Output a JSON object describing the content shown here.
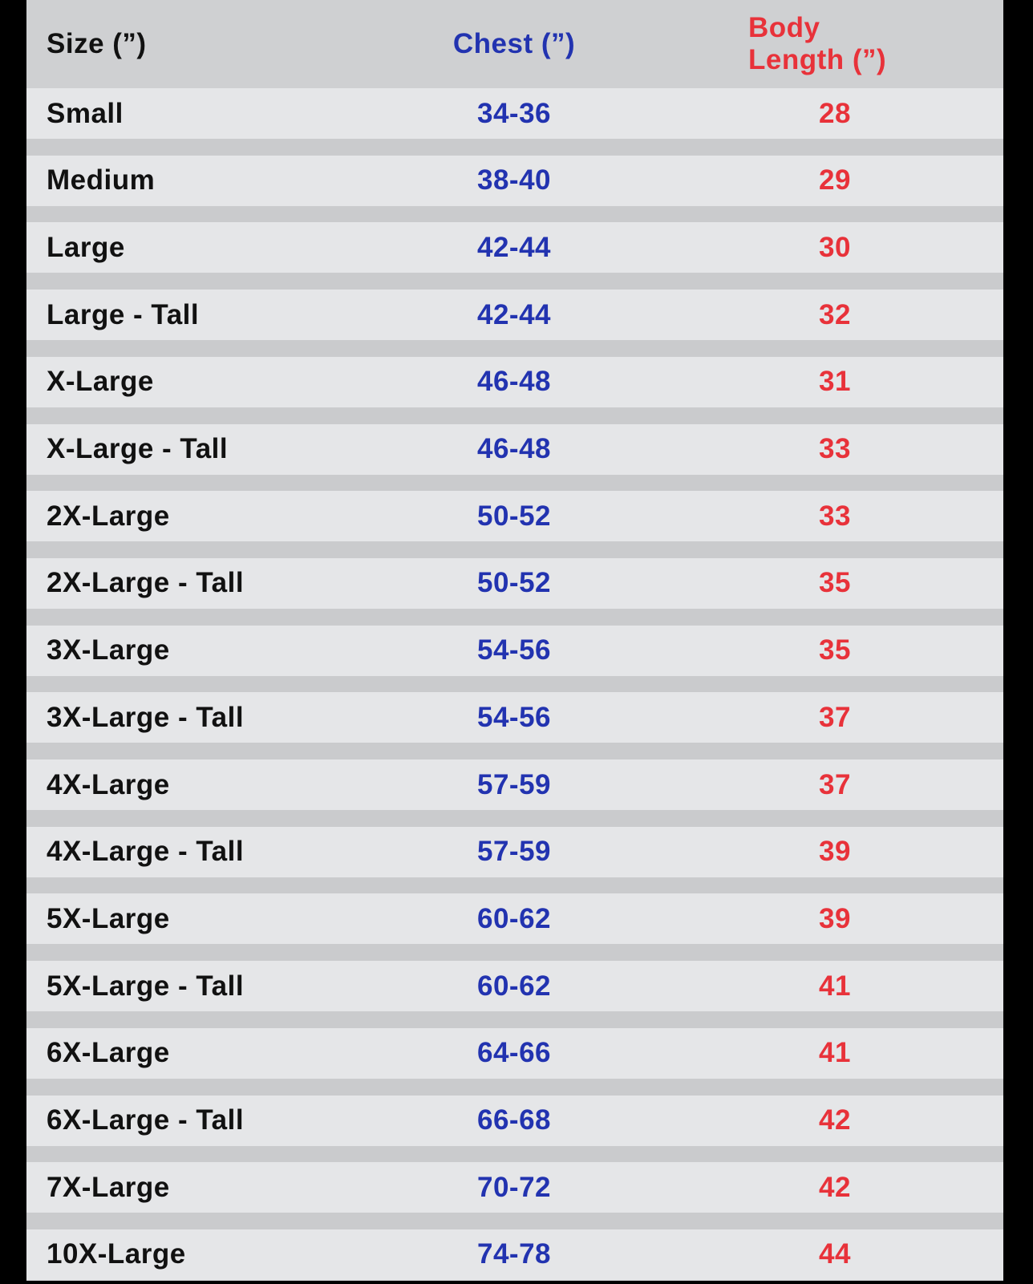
{
  "colors": {
    "size": "#111111",
    "chest": "#2233b0",
    "length": "#e8323a"
  },
  "headers": {
    "size": "Size (”)",
    "chest": "Chest (”)",
    "length": "Body Length (”)"
  },
  "rows": [
    {
      "size": "Small",
      "chest": "34-36",
      "length": "28"
    },
    {
      "size": "Medium",
      "chest": "38-40",
      "length": "29"
    },
    {
      "size": "Large",
      "chest": "42-44",
      "length": "30"
    },
    {
      "size": "Large - Tall",
      "chest": "42-44",
      "length": "32"
    },
    {
      "size": "X-Large",
      "chest": "46-48",
      "length": "31"
    },
    {
      "size": "X-Large - Tall",
      "chest": "46-48",
      "length": "33"
    },
    {
      "size": "2X-Large",
      "chest": "50-52",
      "length": "33"
    },
    {
      "size": "2X-Large - Tall",
      "chest": "50-52",
      "length": "35"
    },
    {
      "size": "3X-Large",
      "chest": "54-56",
      "length": "35"
    },
    {
      "size": "3X-Large - Tall",
      "chest": "54-56",
      "length": "37"
    },
    {
      "size": "4X-Large",
      "chest": "57-59",
      "length": "37"
    },
    {
      "size": "4X-Large - Tall",
      "chest": "57-59",
      "length": "39"
    },
    {
      "size": "5X-Large",
      "chest": "60-62",
      "length": "39"
    },
    {
      "size": "5X-Large - Tall",
      "chest": "60-62",
      "length": "41"
    },
    {
      "size": "6X-Large",
      "chest": "64-66",
      "length": "41"
    },
    {
      "size": "6X-Large - Tall",
      "chest": "66-68",
      "length": "42"
    },
    {
      "size": "7X-Large",
      "chest": "70-72",
      "length": "42"
    },
    {
      "size": "10X-Large",
      "chest": "74-78",
      "length": "44"
    }
  ]
}
